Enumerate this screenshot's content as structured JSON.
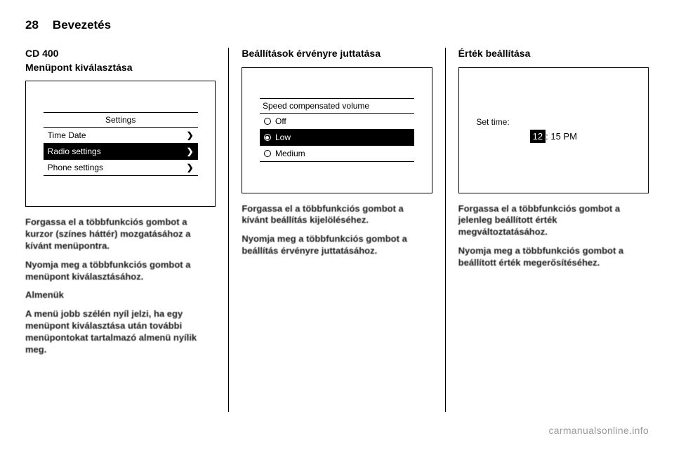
{
  "header": {
    "pageNumber": "28",
    "section": "Bevezetés"
  },
  "col1": {
    "title1": "CD 400",
    "title2": "Menüpont kiválasztása",
    "figure": {
      "title": "Settings",
      "rows": [
        {
          "label": "Time Date",
          "chevron": "❯",
          "selected": false
        },
        {
          "label": "Radio settings",
          "chevron": "❯",
          "selected": true
        },
        {
          "label": "Phone settings",
          "chevron": "❯",
          "selected": false
        }
      ]
    },
    "p1": "Forgassa el a többfunkciós gombot a kurzor (színes háttér) mozgatásához a kívánt menüpontra.",
    "p2": "Nyomja meg a többfunkciós gombot a menüpont kiválasztásához.",
    "subhead": "Almenük",
    "p3": "A menü jobb szélén nyíl jelzi, ha egy menüpont kiválasztása után további menüpontokat tartalmazó almenü nyílik meg."
  },
  "col2": {
    "title": "Beállítások érvényre juttatása",
    "figure": {
      "title": "Speed compensated volume",
      "rows": [
        {
          "label": "Off",
          "selected": false,
          "checked": false
        },
        {
          "label": "Low",
          "selected": true,
          "checked": true
        },
        {
          "label": "Medium",
          "selected": false,
          "checked": false
        }
      ]
    },
    "p1": "Forgassa el a többfunkciós gombot a kívánt beállítás kijelöléséhez.",
    "p2": "Nyomja meg a többfunkciós gombot a beállítás érvényre juttatásához."
  },
  "col3": {
    "title": "Érték beállítása",
    "figure": {
      "label": "Set time:",
      "hour": "12",
      "rest": ": 15 PM"
    },
    "p1": "Forgassa el a többfunkciós gombot a jelenleg beállított érték megváltoztatásához.",
    "p2": "Nyomja meg a többfunkciós gombot a beállított érték megerősítéséhez."
  },
  "watermark": "carmanualsonline.info"
}
